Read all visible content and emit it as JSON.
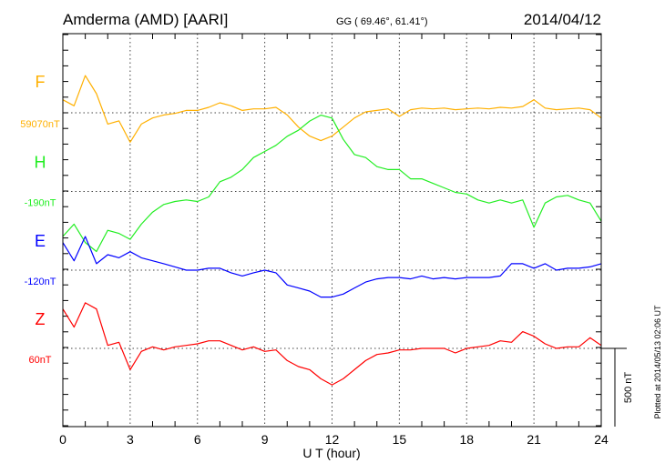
{
  "header": {
    "station": "Amderma (AMD)  [AARI]",
    "coords": "GG ( 69.46°,  61.41°)",
    "date": "2014/04/12"
  },
  "footer": {
    "plotted": "Plotted at 2014/05/13 02:06 UT",
    "scale_label": "500 nT"
  },
  "chart_data": {
    "type": "line",
    "title": "Amderma (AMD) [AARI] 2014/04/12",
    "xlabel": "U T (hour)",
    "xlim": [
      0,
      24
    ],
    "xticks": [
      "0",
      "3",
      "6",
      "9",
      "12",
      "15",
      "18",
      "21",
      "24"
    ],
    "grid": true,
    "scale_nT": 500,
    "x": [
      0,
      0.5,
      1,
      1.5,
      2,
      2.5,
      3,
      3.5,
      4,
      4.5,
      5,
      5.5,
      6,
      6.5,
      7,
      7.5,
      8,
      8.5,
      9,
      9.5,
      10,
      10.5,
      11,
      11.5,
      12,
      12.5,
      13,
      13.5,
      14,
      14.5,
      15,
      15.5,
      16,
      16.5,
      17,
      17.5,
      18,
      18.5,
      19,
      19.5,
      20,
      20.5,
      21,
      21.5,
      22,
      22.5,
      23,
      23.5,
      24
    ],
    "series": [
      {
        "name": "F",
        "baseline_label": "59070nT",
        "color": "#ffb000",
        "values": [
          83,
          45,
          238,
          122,
          -72,
          -52,
          -188,
          -72,
          -33,
          -14,
          -4,
          15,
          15,
          35,
          64,
          45,
          15,
          25,
          25,
          35,
          -14,
          -91,
          -149,
          -178,
          -149,
          -91,
          -33,
          6,
          15,
          25,
          -23,
          20,
          30,
          25,
          30,
          20,
          25,
          30,
          25,
          35,
          30,
          40,
          83,
          30,
          20,
          25,
          30,
          20,
          -33
        ]
      },
      {
        "name": "H",
        "baseline_label": "-190nT",
        "color": "#22ee22",
        "values": [
          -287,
          -209,
          -326,
          -384,
          -248,
          -268,
          -306,
          -209,
          -132,
          -83,
          -64,
          -54,
          -64,
          -35,
          62,
          91,
          140,
          217,
          256,
          295,
          353,
          391,
          450,
          488,
          469,
          333,
          236,
          217,
          159,
          140,
          140,
          81,
          81,
          52,
          23,
          -6,
          -16,
          -54,
          -74,
          -54,
          -74,
          -54,
          -229,
          -74,
          -35,
          -25,
          -54,
          -74,
          -190
        ]
      },
      {
        "name": "E",
        "baseline_label": "-120nT",
        "color": "#0000ff",
        "values": [
          176,
          60,
          215,
          41,
          99,
          79,
          118,
          79,
          60,
          41,
          21,
          0,
          0,
          12,
          12,
          -17,
          -37,
          -17,
          0,
          -17,
          -95,
          -114,
          -134,
          -172,
          -172,
          -153,
          -114,
          -76,
          -56,
          -47,
          -47,
          -56,
          -37,
          -56,
          -47,
          -56,
          -47,
          -47,
          -47,
          -37,
          41,
          41,
          12,
          41,
          0,
          12,
          12,
          21,
          41
        ]
      },
      {
        "name": "Z",
        "baseline_label": "60nT",
        "color": "#ff0000",
        "values": [
          252,
          136,
          291,
          252,
          19,
          39,
          -136,
          -19,
          10,
          -10,
          10,
          19,
          29,
          48,
          48,
          19,
          -10,
          10,
          -19,
          -10,
          -78,
          -116,
          -136,
          -194,
          -233,
          -194,
          -136,
          -78,
          -39,
          -29,
          -10,
          -10,
          0,
          0,
          0,
          -29,
          0,
          10,
          19,
          48,
          39,
          107,
          78,
          29,
          0,
          10,
          10,
          68,
          19
        ]
      }
    ]
  }
}
